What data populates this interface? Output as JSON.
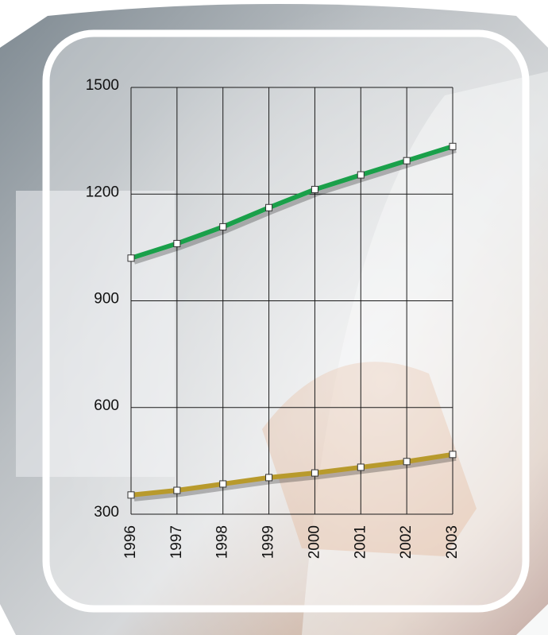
{
  "chart_data": {
    "type": "line",
    "categories": [
      "1996",
      "1997",
      "1998",
      "1999",
      "2000",
      "2001",
      "2002",
      "2003"
    ],
    "series": [
      {
        "color": "#1aa04a",
        "values": [
          1020,
          1061,
          1108,
          1162,
          1213,
          1254,
          1294,
          1334
        ]
      },
      {
        "color": "#b89a2c",
        "values": [
          354,
          367,
          385,
          403,
          416,
          432,
          448,
          468
        ]
      }
    ],
    "ylim": [
      300,
      1500
    ],
    "yticks": [
      300,
      600,
      900,
      1200,
      1500
    ],
    "grid": true
  }
}
